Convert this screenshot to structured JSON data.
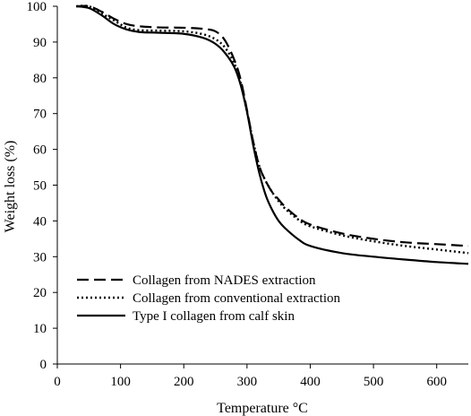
{
  "chart_data": {
    "type": "line",
    "title": "",
    "xlabel": "Temperature °C",
    "ylabel": "Weight loss (%)",
    "xlim": [
      0,
      650
    ],
    "ylim": [
      0,
      100
    ],
    "xticks": [
      0,
      100,
      200,
      300,
      400,
      500,
      600
    ],
    "yticks": [
      0,
      10,
      20,
      30,
      40,
      50,
      60,
      70,
      80,
      90,
      100
    ],
    "grid": false,
    "legend_position": "bottom-left",
    "series": [
      {
        "name": "Collagen from NADES extraction",
        "style": "dashed",
        "color": "#000000",
        "points": [
          [
            30,
            100
          ],
          [
            50,
            100
          ],
          [
            70,
            98.5
          ],
          [
            90,
            96.5
          ],
          [
            110,
            95
          ],
          [
            130,
            94.4
          ],
          [
            160,
            94.1
          ],
          [
            200,
            94
          ],
          [
            230,
            93.7
          ],
          [
            250,
            93
          ],
          [
            265,
            90.5
          ],
          [
            280,
            85
          ],
          [
            290,
            79.5
          ],
          [
            300,
            71
          ],
          [
            310,
            62
          ],
          [
            320,
            55
          ],
          [
            330,
            51
          ],
          [
            340,
            48
          ],
          [
            350,
            46
          ],
          [
            360,
            44
          ],
          [
            380,
            41
          ],
          [
            400,
            39
          ],
          [
            450,
            36.5
          ],
          [
            500,
            35
          ],
          [
            550,
            34
          ],
          [
            600,
            33.5
          ],
          [
            650,
            33
          ]
        ]
      },
      {
        "name": "Collagen from conventional extraction",
        "style": "dotted",
        "color": "#000000",
        "points": [
          [
            30,
            100
          ],
          [
            50,
            100
          ],
          [
            70,
            98
          ],
          [
            90,
            96
          ],
          [
            110,
            94
          ],
          [
            130,
            93.3
          ],
          [
            160,
            93.2
          ],
          [
            200,
            93
          ],
          [
            230,
            92.2
          ],
          [
            250,
            90.8
          ],
          [
            265,
            88.5
          ],
          [
            280,
            84
          ],
          [
            290,
            78.5
          ],
          [
            300,
            70.5
          ],
          [
            310,
            62
          ],
          [
            320,
            55
          ],
          [
            330,
            51
          ],
          [
            340,
            48
          ],
          [
            350,
            45.5
          ],
          [
            360,
            43.5
          ],
          [
            380,
            40.5
          ],
          [
            400,
            38.5
          ],
          [
            450,
            36
          ],
          [
            500,
            34.3
          ],
          [
            550,
            33
          ],
          [
            600,
            32
          ],
          [
            650,
            31
          ]
        ]
      },
      {
        "name": "Type I collagen from calf skin",
        "style": "solid",
        "color": "#000000",
        "points": [
          [
            30,
            100
          ],
          [
            50,
            99.5
          ],
          [
            70,
            97.5
          ],
          [
            90,
            95
          ],
          [
            110,
            93.5
          ],
          [
            130,
            92.8
          ],
          [
            160,
            92.6
          ],
          [
            200,
            92.3
          ],
          [
            230,
            91.2
          ],
          [
            250,
            89.5
          ],
          [
            265,
            87
          ],
          [
            280,
            83
          ],
          [
            290,
            78
          ],
          [
            300,
            70.5
          ],
          [
            310,
            61
          ],
          [
            320,
            53
          ],
          [
            330,
            47
          ],
          [
            340,
            43
          ],
          [
            350,
            40
          ],
          [
            360,
            38
          ],
          [
            380,
            35
          ],
          [
            400,
            33
          ],
          [
            450,
            31
          ],
          [
            500,
            30
          ],
          [
            550,
            29.2
          ],
          [
            600,
            28.5
          ],
          [
            650,
            28
          ]
        ]
      }
    ]
  }
}
